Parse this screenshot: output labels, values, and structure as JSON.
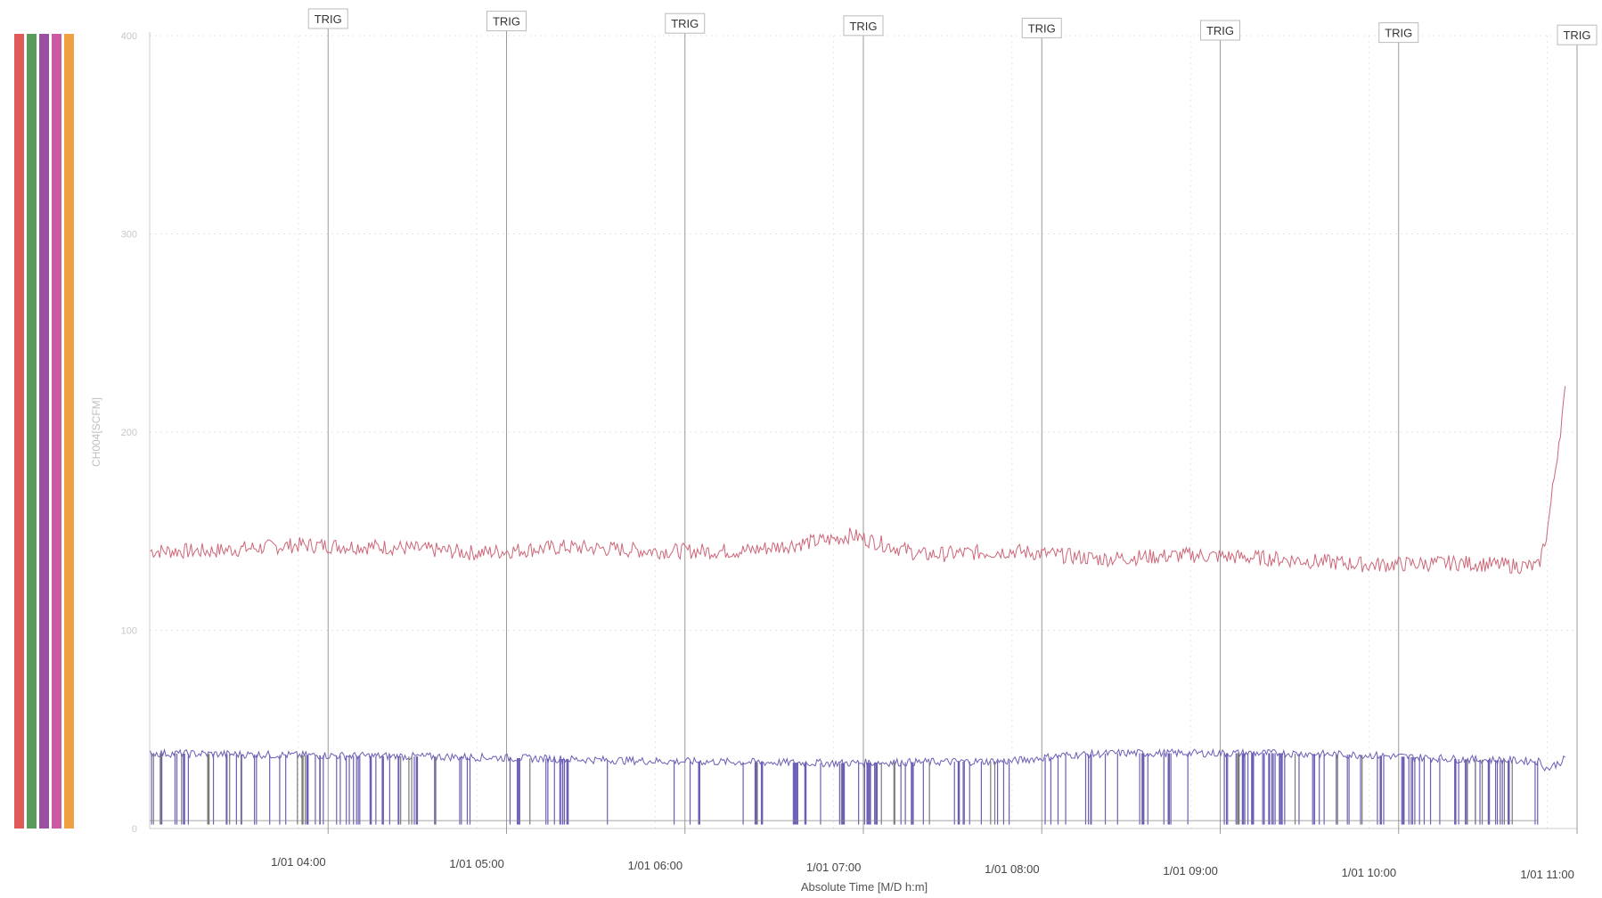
{
  "chart_data": {
    "type": "line",
    "xlabel": "Absolute Time [M/D h:m]",
    "ylabel": "CH004[SCFM]",
    "x_ticks": [
      "1/01 04:00",
      "1/01 05:00",
      "1/01 06:00",
      "1/01 07:00",
      "1/01 08:00",
      "1/01 09:00",
      "1/01 10:00",
      "1/01 11:00"
    ],
    "xlim": [
      "1/01 03:10",
      "1/01 11:10"
    ],
    "ylim": [
      0,
      400
    ],
    "y_ticks": [
      0,
      100,
      200,
      300,
      400
    ],
    "grid": true,
    "triggers": {
      "label": "TRIG",
      "times": [
        "1/01 04:10",
        "1/01 05:10",
        "1/01 06:10",
        "1/01 07:10",
        "1/01 08:10",
        "1/01 09:10",
        "1/01 10:10",
        "1/01 11:10"
      ]
    },
    "series": [
      {
        "color": "#cc6677",
        "hours": [
          3.17,
          3.5,
          4.0,
          4.5,
          5.0,
          5.5,
          6.0,
          6.5,
          7.0,
          7.1,
          7.5,
          8.0,
          8.5,
          9.0,
          9.5,
          10.0,
          10.5,
          10.95,
          11.0,
          11.1
        ],
        "values": [
          140,
          140,
          143,
          142,
          139,
          142,
          140,
          140,
          146,
          148,
          138,
          140,
          136,
          138,
          136,
          133,
          134,
          132,
          150,
          220
        ]
      },
      {
        "color": "#6a5fb5",
        "hours": [
          3.17,
          4.0,
          5.0,
          6.0,
          7.0,
          8.0,
          8.3,
          8.6,
          9.0,
          9.5,
          10.0,
          10.5,
          10.95,
          11.0,
          11.1
        ],
        "values": [
          38,
          37,
          36,
          34,
          33,
          34,
          37,
          38,
          38,
          38,
          37,
          35,
          34,
          30,
          35
        ]
      }
    ]
  },
  "legend_colors": [
    "#e05a5a",
    "#5a9a5a",
    "#9a4fa0",
    "#cc5aa0",
    "#f0a040"
  ]
}
